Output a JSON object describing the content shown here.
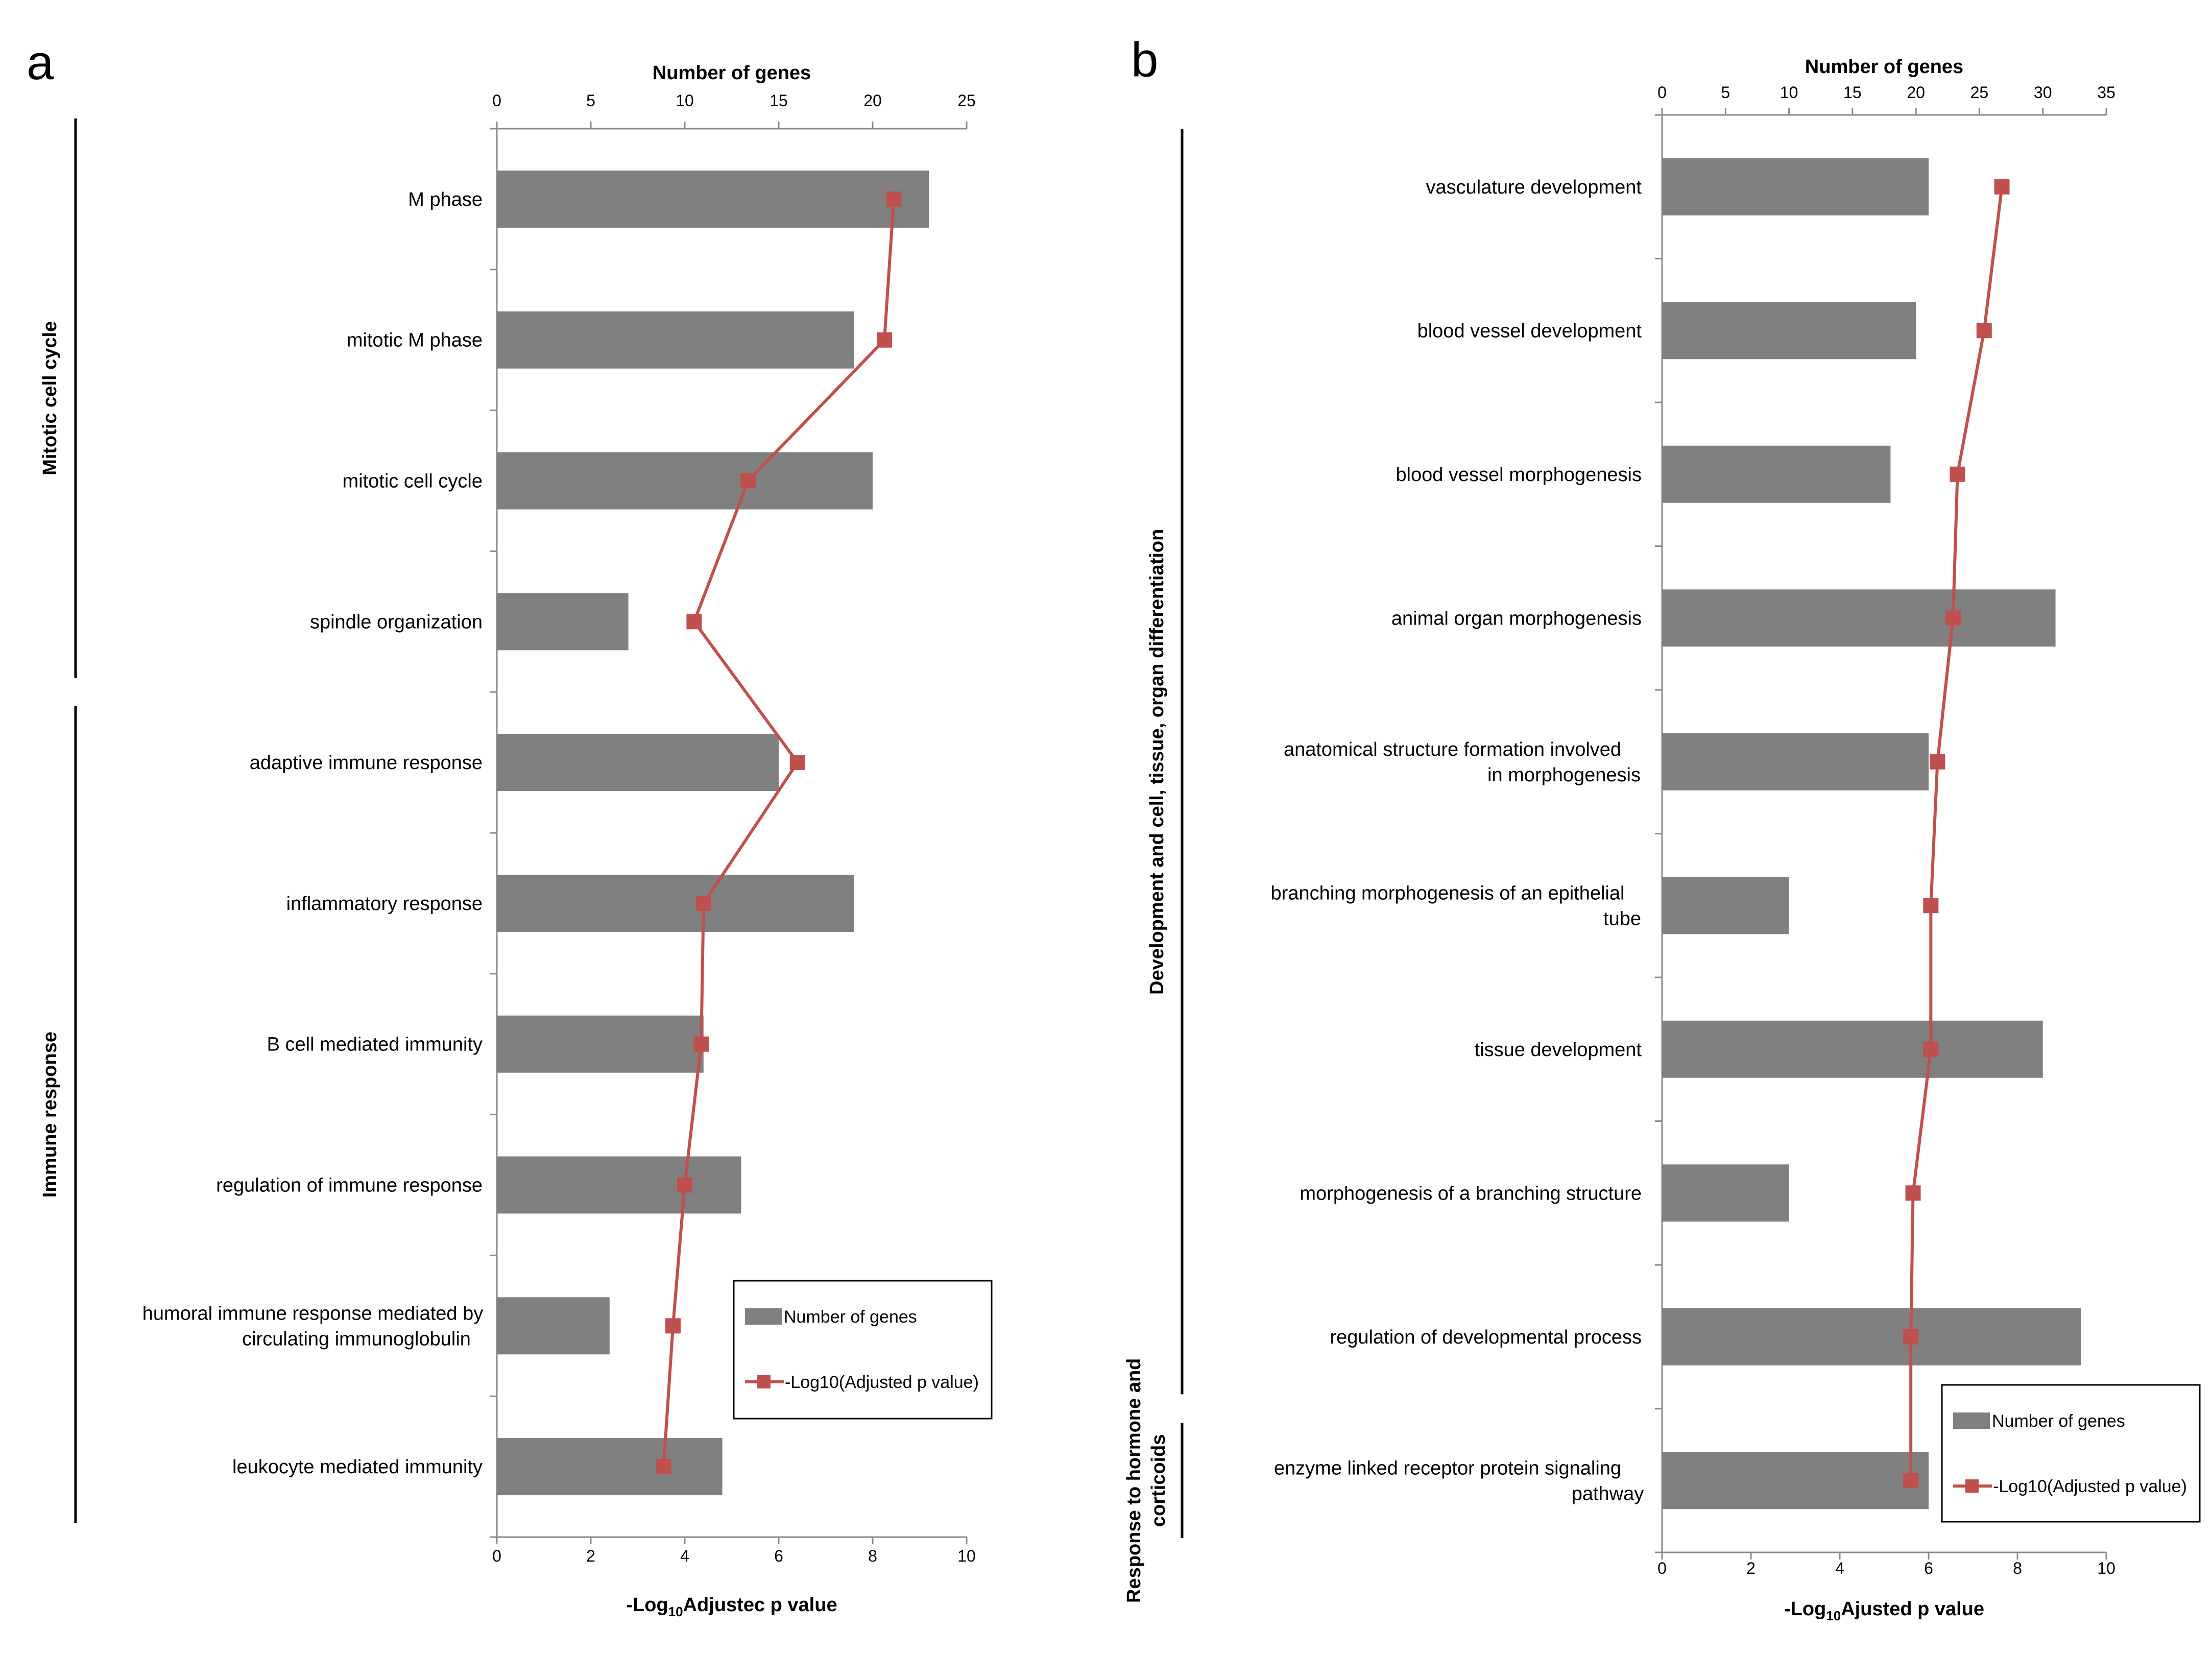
{
  "colors": {
    "bar": "#808080",
    "line": "#c0504d",
    "marker": "#c0504d",
    "axis": "#8a8a8a"
  },
  "chart_data": [
    {
      "panel": "a",
      "type": "bar",
      "orientation": "horizontal",
      "categories": [
        "M phase",
        "mitotic M phase",
        "mitotic cell cycle",
        "spindle organization",
        "adaptive immune response",
        "inflammatory response",
        "B cell mediated immunity",
        "regulation of immune response",
        "humoral immune response mediated by circulating immunoglobulin",
        "leukocyte mediated immunity"
      ],
      "category_lines": [
        [
          "M phase"
        ],
        [
          "mitotic M phase"
        ],
        [
          "mitotic cell cycle"
        ],
        [
          "spindle organization"
        ],
        [
          "adaptive immune response"
        ],
        [
          "inflammatory response"
        ],
        [
          "B cell mediated immunity"
        ],
        [
          "regulation of immune response"
        ],
        [
          "humoral immune response mediated by",
          "circulating immunoglobulin"
        ],
        [
          "leukocyte mediated immunity"
        ]
      ],
      "series": [
        {
          "name": "Number of genes",
          "kind": "bar",
          "axis": "top",
          "values": [
            23,
            19,
            20,
            7,
            15,
            19,
            11,
            13,
            6,
            12
          ]
        },
        {
          "name": "-Log10(Adjusted p value)",
          "kind": "line",
          "axis": "bottom",
          "values": [
            8.45,
            8.25,
            5.35,
            4.2,
            6.4,
            4.4,
            4.35,
            4.0,
            3.75,
            3.55
          ]
        }
      ],
      "top_axis": {
        "label": "Number of genes",
        "range": [
          0,
          25
        ],
        "ticks": [
          "0",
          "5",
          "10",
          "15",
          "20",
          "25"
        ]
      },
      "bottom_axis": {
        "label_main": "-Log",
        "label_sub": "10",
        "label_rest": "Adjustec p value",
        "range": [
          0,
          10
        ],
        "ticks": [
          "0",
          "2",
          "4",
          "6",
          "8",
          "10"
        ]
      },
      "groups": [
        {
          "label": "Mitotic cell cycle",
          "from": 0,
          "to": 3
        },
        {
          "label": "Immune response",
          "from": 4,
          "to": 9
        }
      ],
      "legend": {
        "position": "bottom-right",
        "items": [
          "Number of genes",
          "-Log10(Adjusted p value)"
        ]
      }
    },
    {
      "panel": "b",
      "type": "bar",
      "orientation": "horizontal",
      "categories": [
        "vasculature development",
        "blood vessel development",
        "blood vessel morphogenesis",
        "animal organ morphogenesis",
        "anatomical structure formation involved in morphogenesis",
        "branching morphogenesis of an epithelial tube",
        "tissue development",
        "morphogenesis of a branching structure",
        "regulation of developmental process",
        "enzyme linked receptor protein signaling pathway"
      ],
      "category_lines": [
        [
          "vasculature development"
        ],
        [
          "blood vessel development"
        ],
        [
          "blood vessel morphogenesis"
        ],
        [
          "animal organ morphogenesis"
        ],
        [
          "anatomical structure formation involved",
          "in morphogenesis"
        ],
        [
          "branching morphogenesis of an epithelial",
          "tube"
        ],
        [
          "tissue development"
        ],
        [
          "morphogenesis of a branching structure"
        ],
        [
          "regulation of developmental process"
        ],
        [
          "enzyme linked receptor protein signaling",
          "pathway"
        ]
      ],
      "series": [
        {
          "name": "Number of genes",
          "kind": "bar",
          "axis": "top",
          "values": [
            21,
            20,
            18,
            31,
            21,
            10,
            30,
            10,
            33,
            21
          ]
        },
        {
          "name": "-Log10(Adjusted p value)",
          "kind": "line",
          "axis": "bottom",
          "values": [
            7.65,
            7.25,
            6.65,
            6.55,
            6.2,
            6.05,
            6.05,
            5.65,
            5.6,
            5.6
          ]
        }
      ],
      "top_axis": {
        "label": "Number of genes",
        "range": [
          0,
          35
        ],
        "ticks": [
          "0",
          "5",
          "10",
          "15",
          "20",
          "25",
          "30",
          "35"
        ]
      },
      "bottom_axis": {
        "label_main": "-Log",
        "label_sub": "10",
        "label_rest": "Ajusted p value",
        "range": [
          0,
          10
        ],
        "ticks": [
          "0",
          "2",
          "4",
          "6",
          "8",
          "10"
        ]
      },
      "groups": [
        {
          "label": "Development and cell, tissue, organ differentiation",
          "from": 0,
          "to": 8
        },
        {
          "label_lines": [
            "Response to hormone and",
            "corticoids"
          ],
          "from": 9,
          "to": 9
        }
      ],
      "legend": {
        "position": "bottom-right",
        "items": [
          "Number of genes",
          "-Log10(Adjusted p value)"
        ]
      }
    }
  ]
}
